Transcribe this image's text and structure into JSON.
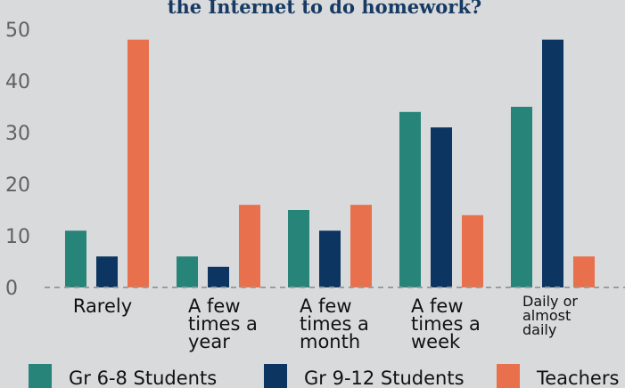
{
  "chart_data": {
    "type": "bar",
    "title": "the Internet to do homework?",
    "categories": [
      [
        "Rarely"
      ],
      [
        "A few",
        "times a",
        "year"
      ],
      [
        "A few",
        "times a",
        "month"
      ],
      [
        "A few",
        "times a",
        "week"
      ],
      [
        "Daily or",
        "almost",
        "daily"
      ]
    ],
    "series": [
      {
        "name": "Gr 6-8 Students",
        "color": "#268478",
        "values": [
          11,
          6,
          15,
          34,
          35
        ]
      },
      {
        "name": "Gr 9-12 Students",
        "color": "#0c3561",
        "values": [
          6,
          4,
          11,
          31,
          48
        ]
      },
      {
        "name": "Teachers",
        "color": "#e8704c",
        "values": [
          48,
          16,
          16,
          14,
          6
        ]
      }
    ],
    "ylim": [
      0,
      50
    ],
    "yticks": [
      0,
      10,
      20,
      30,
      40,
      50
    ],
    "grid": false,
    "baseline": "dashed",
    "legend_position": "bottom"
  }
}
